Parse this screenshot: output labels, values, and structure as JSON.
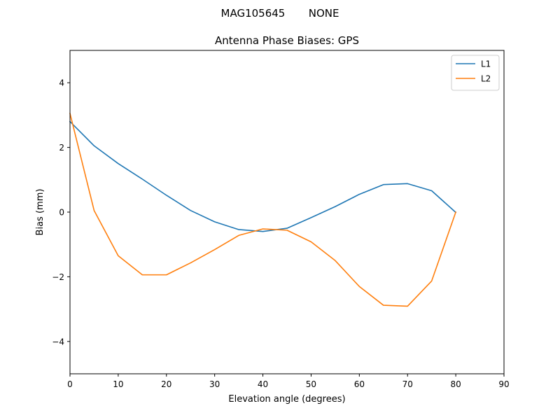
{
  "figure": {
    "suptitle": "MAG105645       NONE"
  },
  "chart_data": {
    "type": "line",
    "title": "Antenna Phase Biases: GPS",
    "xlabel": "Elevation angle (degrees)",
    "ylabel": "Bias (mm)",
    "xlim": [
      0,
      90
    ],
    "ylim": [
      -5,
      5
    ],
    "xticks": [
      0,
      10,
      20,
      30,
      40,
      50,
      60,
      70,
      80,
      90
    ],
    "yticks": [
      -4,
      -2,
      0,
      2,
      4
    ],
    "x": [
      0,
      5,
      10,
      15,
      20,
      25,
      30,
      35,
      40,
      45,
      50,
      55,
      60,
      65,
      70,
      75,
      80
    ],
    "series": [
      {
        "name": "L1",
        "color": "#1f77b4",
        "values": [
          2.8,
          2.05,
          1.5,
          1.02,
          0.52,
          0.05,
          -0.3,
          -0.54,
          -0.6,
          -0.5,
          -0.17,
          0.17,
          0.55,
          0.85,
          0.88,
          0.66,
          -0.01
        ]
      },
      {
        "name": "L2",
        "color": "#ff7f0e",
        "values": [
          3.05,
          0.05,
          -1.35,
          -1.94,
          -1.94,
          -1.57,
          -1.16,
          -0.72,
          -0.52,
          -0.56,
          -0.92,
          -1.5,
          -2.3,
          -2.88,
          -2.91,
          -2.13,
          0.0
        ]
      }
    ],
    "legend_position": "top-right",
    "grid": false
  }
}
